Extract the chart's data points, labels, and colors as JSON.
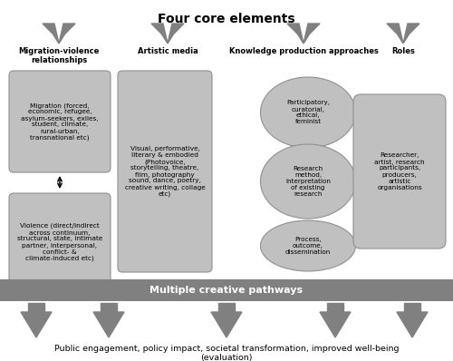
{
  "title": "Four core elements",
  "background_color": "#ffffff",
  "arrow_color": "#808080",
  "box_fill_color": "#c0c0c0",
  "box_edge_color": "#909090",
  "oval_fill_color": "#c0c0c0",
  "banner_fill_color": "#808080",
  "banner_text_color": "#ffffff",
  "bottom_text": "Public engagement, policy impact, societal transformation, improved well-being\n(evaluation)",
  "banner_text": "Multiple creative pathways",
  "col1_label": "Migration-violence\nrelationships",
  "col2_label": "Artistic media",
  "col3_label": "Knowledge production approaches",
  "col4_label": "Roles",
  "box1_text": "Migration (forced,\neconomic, refugee,\nasylum-seekers, exiles,\nstudent, climate,\nrural-urban,\ntransnational etc)",
  "box2_text": "Violence (direct/indirect\nacross continuum,\nstructural, state, intimate\npartner, interpersonal,\nconflict- &\nclimate-induced etc)",
  "box3_text": "Visual, performative,\nliterary & embodied\n(Photovoice,\nstorytelling, theatre,\nfilm, photography\nsound, dance, poetry,\ncreative writing, collage\netc)",
  "oval1_text": "Participatory,\ncuratorial,\nethical,\nfeminist",
  "oval2_text": "Research\nmethod,\ninterpretation\nof existing\nresearch",
  "oval3_text": "Process,\noutcome,\ndissemination",
  "box4_text": "Researcher,\nartist, research\nparticipants,\nproducers,\nartistic\norganisations"
}
